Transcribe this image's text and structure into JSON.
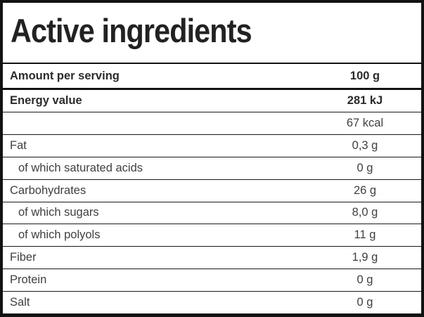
{
  "title": "Active ingredients",
  "colors": {
    "border": "#121212",
    "text": "#3f3f3f",
    "text_bold": "#2b2b2b",
    "background": "#ffffff"
  },
  "table": {
    "header": {
      "label": "Amount per serving",
      "value": "100 g"
    },
    "rows": [
      {
        "label": "Energy value",
        "value": "281 kJ",
        "bold": true,
        "indent": false
      },
      {
        "label": "",
        "value": "67 kcal",
        "bold": false,
        "indent": false
      },
      {
        "label": "Fat",
        "value": "0,3 g",
        "bold": false,
        "indent": false
      },
      {
        "label": "of which saturated acids",
        "value": "0 g",
        "bold": false,
        "indent": true
      },
      {
        "label": "Carbohydrates",
        "value": "26 g",
        "bold": false,
        "indent": false
      },
      {
        "label": "of which sugars",
        "value": "8,0 g",
        "bold": false,
        "indent": true
      },
      {
        "label": "of which polyols",
        "value": "11 g",
        "bold": false,
        "indent": true
      },
      {
        "label": "Fiber",
        "value": "1,9 g",
        "bold": false,
        "indent": false
      },
      {
        "label": "Protein",
        "value": "0 g",
        "bold": false,
        "indent": false
      },
      {
        "label": "Salt",
        "value": "0 g",
        "bold": false,
        "indent": false
      }
    ]
  }
}
